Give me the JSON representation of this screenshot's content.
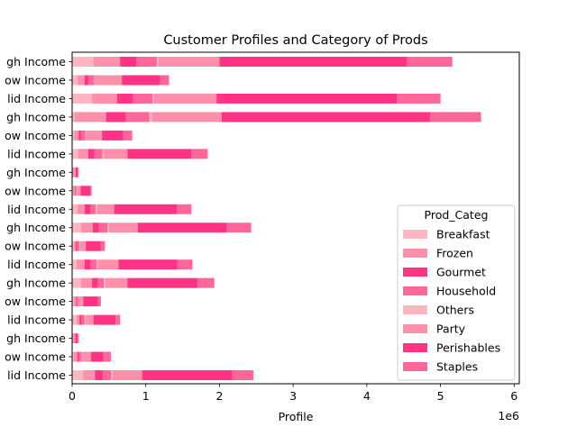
{
  "chart_data": {
    "type": "bar",
    "orientation": "horizontal",
    "stacked": true,
    "title": "Customer Profiles and Category of Prods",
    "xlabel": "Profile",
    "ylabel": "",
    "x_offset_text": "1e6",
    "xlim": [
      0,
      6070000
    ],
    "xticks": [
      0,
      1,
      2,
      3,
      4,
      5,
      6
    ],
    "grid": false,
    "legend": {
      "title": "Prod_Categ",
      "placement": "lower right"
    },
    "categories": [
      "Mid Income",
      "Low Income",
      "High Income",
      "Mid Income",
      "Low Income",
      "High Income",
      "Mid Income",
      "Low Income",
      "High Income",
      "Mid Income",
      "Low Income",
      "High Income",
      "Mid Income",
      "Low Income",
      "High Income",
      "Mid Income",
      "Low Income",
      "High Income"
    ],
    "category_labels_visible": [
      "lid Income",
      "ow Income",
      "gh Income",
      "lid Income",
      "ow Income",
      "gh Income",
      "lid Income",
      "ow Income",
      "gh Income",
      "lid Income",
      "ow Income",
      "gh Income",
      "lid Income",
      "ow Income",
      "gh Income",
      "lid Income",
      "ow Income",
      "gh Income"
    ],
    "series": [
      {
        "name": "Breakfast",
        "color": "#ffb6c1",
        "values": [
          150000,
          20000,
          5000,
          60000,
          25000,
          120000,
          60000,
          20000,
          120000,
          70000,
          10000,
          5000,
          80000,
          30000,
          30000,
          270000,
          70000,
          290000
        ]
      },
      {
        "name": "Frozen",
        "color": "#ff8fab",
        "values": [
          160000,
          50000,
          5000,
          40000,
          30000,
          150000,
          110000,
          30000,
          160000,
          100000,
          30000,
          10000,
          140000,
          60000,
          430000,
          340000,
          100000,
          360000
        ]
      },
      {
        "name": "Gourmet",
        "color": "#ff3385",
        "values": [
          100000,
          20000,
          5000,
          30000,
          10000,
          80000,
          80000,
          20000,
          80000,
          80000,
          10000,
          5000,
          80000,
          30000,
          270000,
          220000,
          50000,
          220000
        ]
      },
      {
        "name": "Household",
        "color": "#ff6699",
        "values": [
          120000,
          40000,
          5000,
          40000,
          20000,
          80000,
          80000,
          30000,
          120000,
          70000,
          10000,
          5000,
          110000,
          60000,
          320000,
          260000,
          80000,
          280000
        ]
      },
      {
        "name": "Others",
        "color": "#ffb6c1",
        "values": [
          20000,
          5000,
          2000,
          10000,
          5000,
          20000,
          20000,
          5000,
          20000,
          20000,
          5000,
          2000,
          20000,
          5000,
          30000,
          20000,
          5000,
          20000
        ]
      },
      {
        "name": "Party",
        "color": "#ff8fab",
        "values": [
          400000,
          120000,
          20000,
          110000,
          60000,
          300000,
          280000,
          80000,
          390000,
          230000,
          50000,
          20000,
          320000,
          220000,
          950000,
          850000,
          370000,
          830000
        ]
      },
      {
        "name": "Perishables",
        "color": "#ff3385",
        "values": [
          1220000,
          170000,
          30000,
          300000,
          200000,
          950000,
          800000,
          200000,
          1210000,
          850000,
          130000,
          30000,
          870000,
          290000,
          2830000,
          2450000,
          520000,
          2540000
        ]
      },
      {
        "name": "Staples",
        "color": "#ff6699",
        "values": [
          290000,
          100000,
          15000,
          60000,
          40000,
          230000,
          200000,
          60000,
          330000,
          200000,
          20000,
          10000,
          220000,
          120000,
          690000,
          590000,
          120000,
          620000
        ]
      }
    ]
  }
}
